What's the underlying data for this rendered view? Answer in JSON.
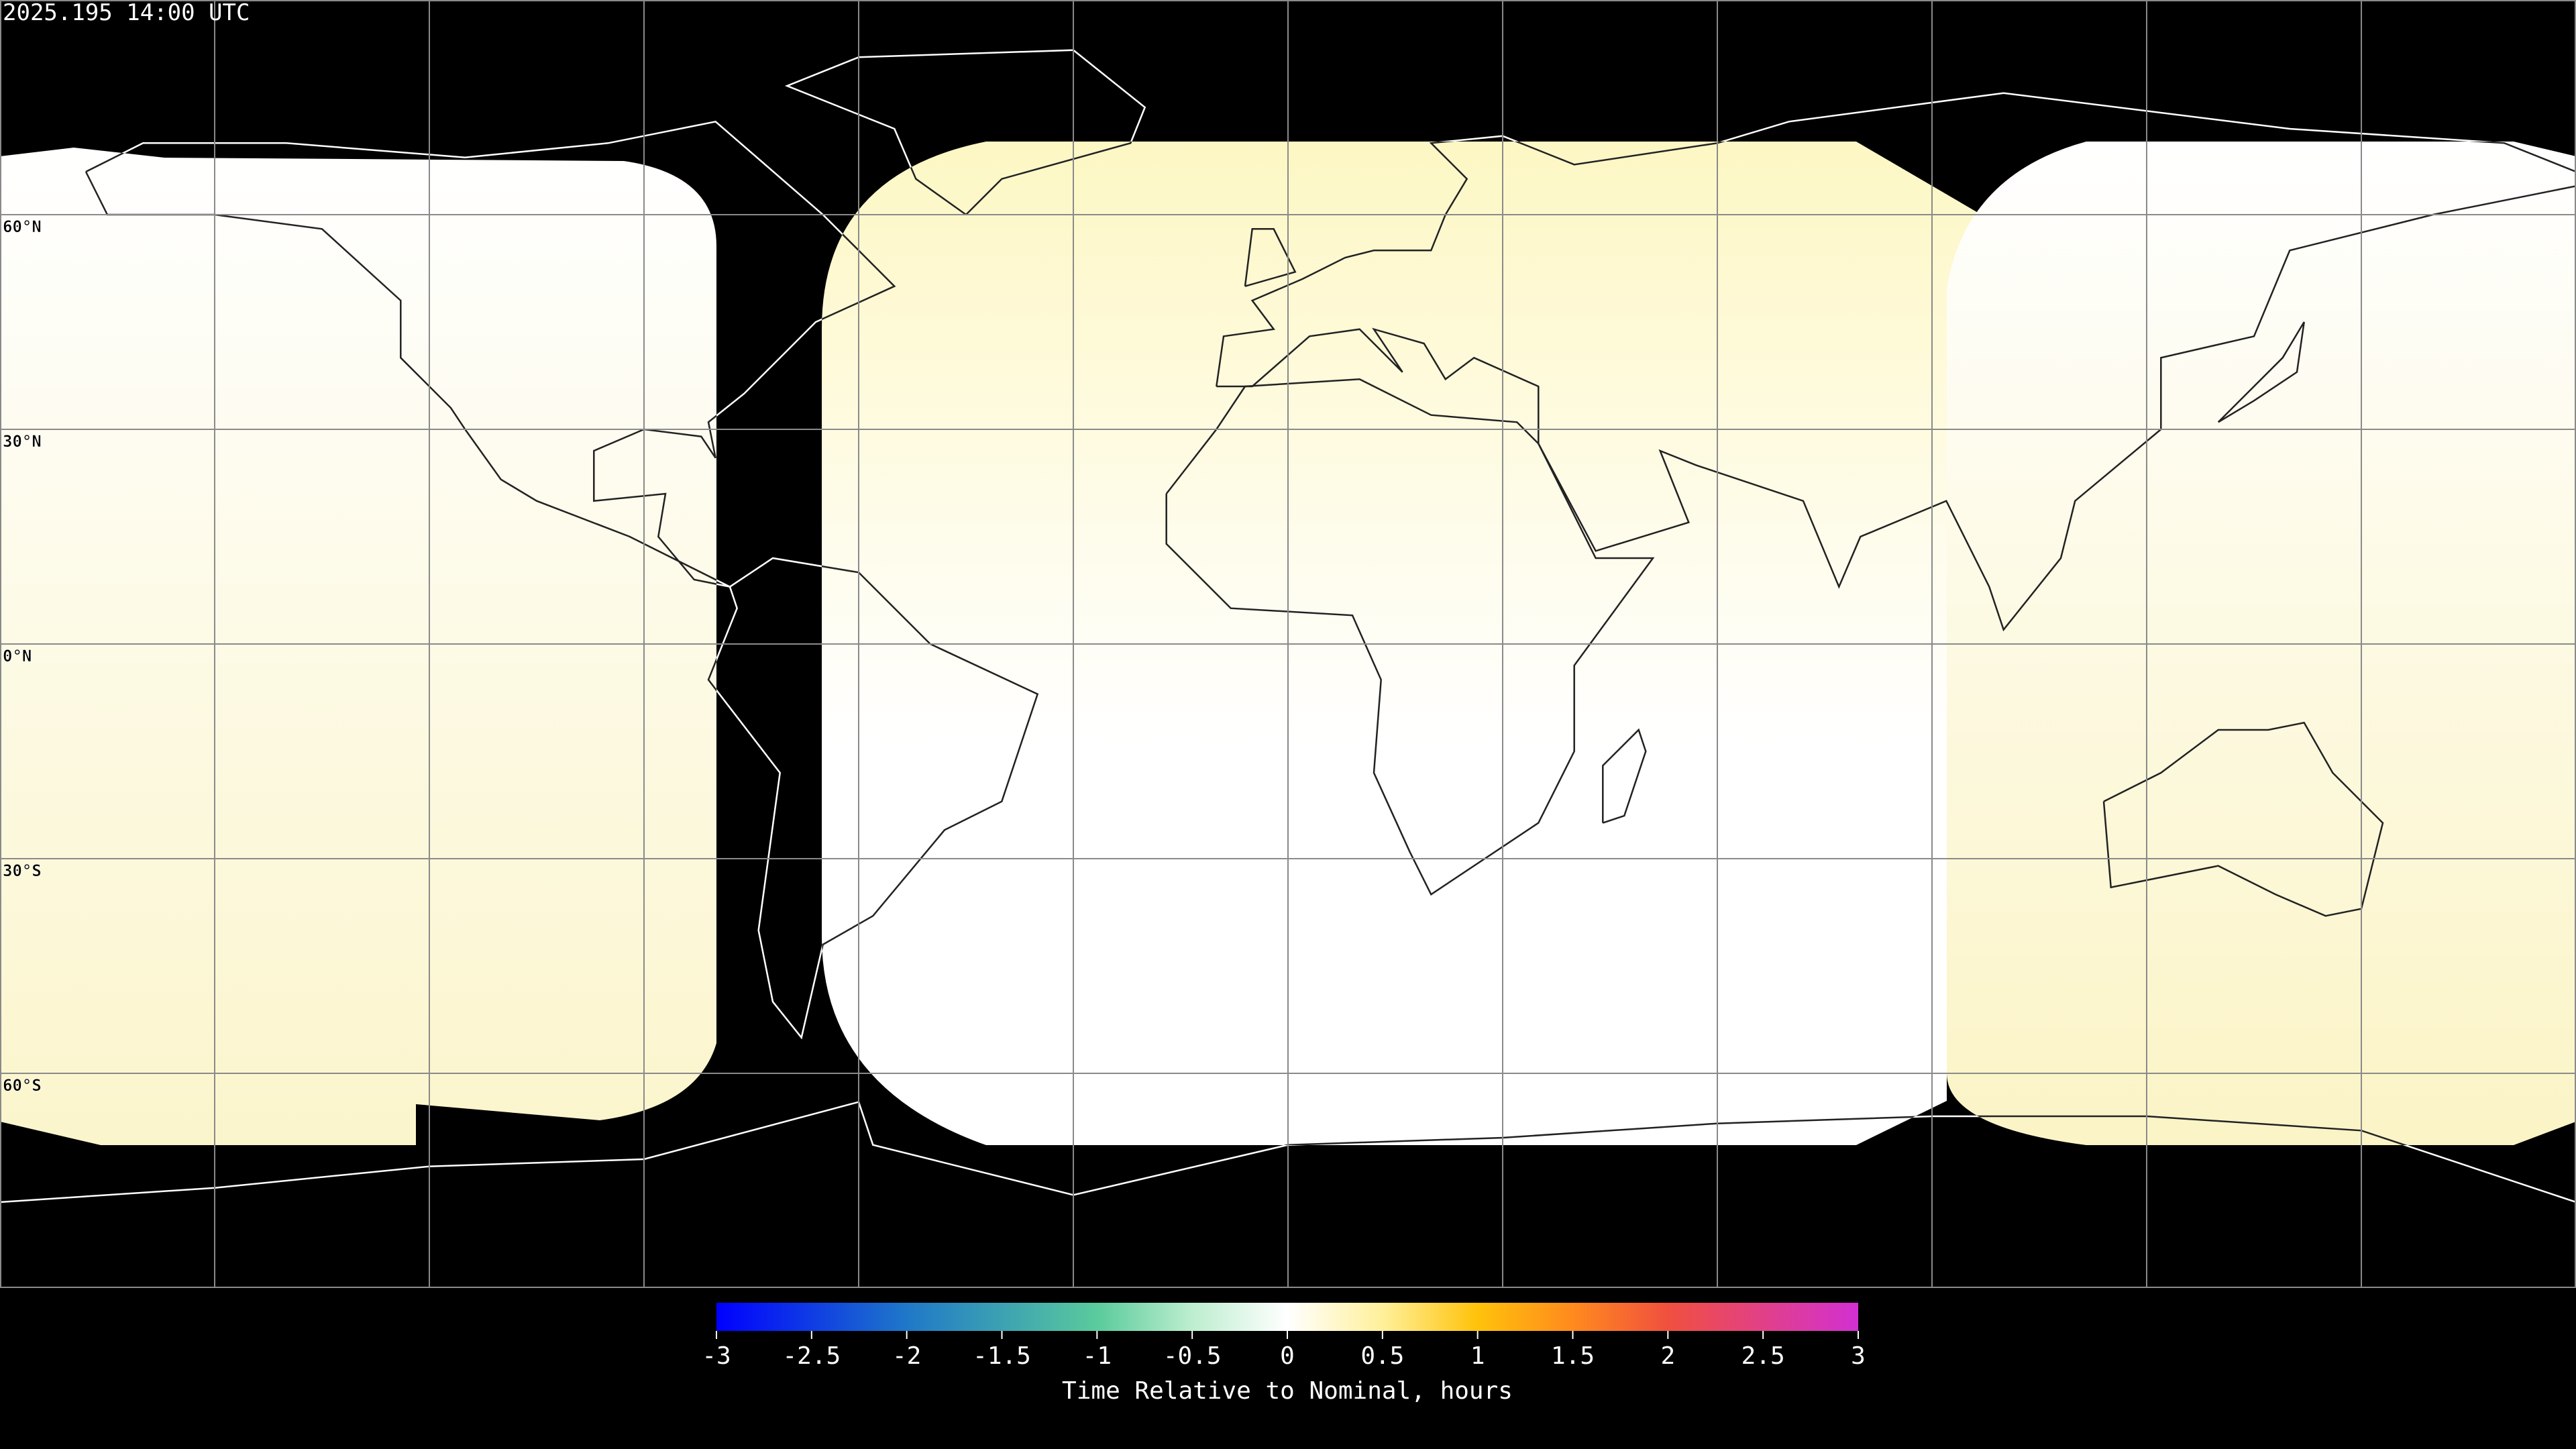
{
  "timestamp": "2025.195 14:00 UTC",
  "map": {
    "latitude_labels": [
      "60°N",
      "30°N",
      "0°N",
      "30°S",
      "60°S"
    ]
  },
  "colorbar": {
    "label": "Time Relative to Nominal, hours",
    "range": [
      -3,
      3
    ],
    "ticks": [
      -3,
      -2.5,
      -2,
      -1.5,
      -1,
      -0.5,
      0,
      0.5,
      1,
      1.5,
      2,
      2.5,
      3
    ],
    "color_stops": [
      {
        "value": -3,
        "color": "#0000ff"
      },
      {
        "value": -2,
        "color": "#1f78c8"
      },
      {
        "value": -1,
        "color": "#5acb9c"
      },
      {
        "value": -0.5,
        "color": "#bdeecf"
      },
      {
        "value": 0,
        "color": "#ffffff"
      },
      {
        "value": 0.5,
        "color": "#fff09a"
      },
      {
        "value": 1,
        "color": "#ffc20a"
      },
      {
        "value": 1.5,
        "color": "#ff8a1e"
      },
      {
        "value": 2,
        "color": "#f0503e"
      },
      {
        "value": 3,
        "color": "#d230d2"
      }
    ]
  }
}
